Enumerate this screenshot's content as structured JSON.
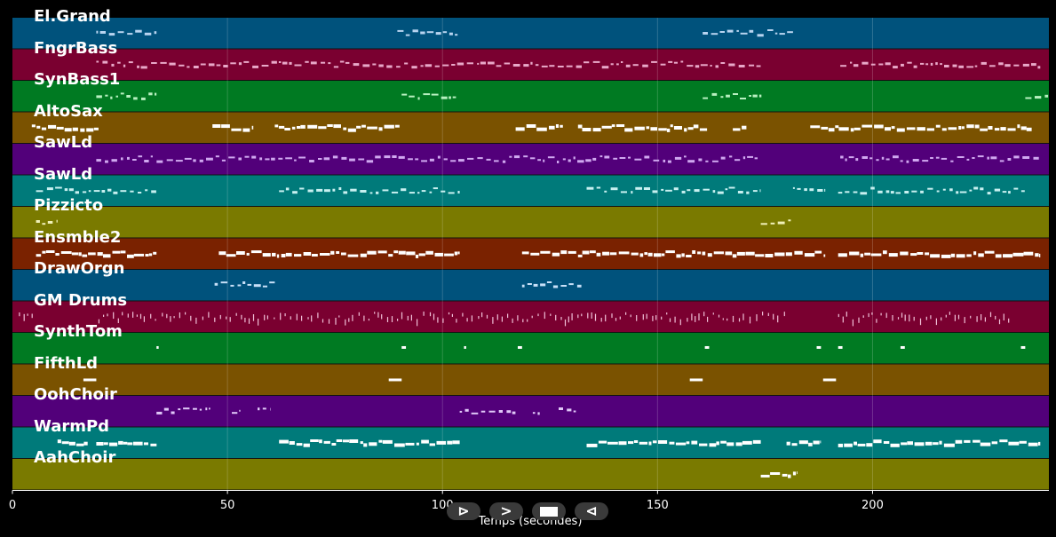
{
  "tracks": [
    {
      "name": "El.Grand",
      "color": "#00527c",
      "note_color": "#b8d4f0"
    },
    {
      "name": "FngrBass",
      "color": "#7a0030",
      "note_color": "#e8a8c8"
    },
    {
      "name": "SynBass1",
      "color": "#007a22",
      "note_color": "#b8f0c0"
    },
    {
      "name": "AltoSax",
      "color": "#7a5200",
      "note_color": "#ffffff"
    },
    {
      "name": "SawLd",
      "color": "#52007a",
      "note_color": "#d0a8f0"
    },
    {
      "name": "SawLd",
      "color": "#007a7a",
      "note_color": "#c8f0f0"
    },
    {
      "name": "Pizzicto",
      "color": "#7a7a00",
      "note_color": "#f0f0b8"
    },
    {
      "name": "Ensmble2",
      "color": "#7a2200",
      "note_color": "#ffffff"
    },
    {
      "name": "DrawOrgn",
      "color": "#00527c",
      "note_color": "#c8e0f8"
    },
    {
      "name": "GM Drums",
      "color": "#7a0030",
      "note_color": "#f0c0d8"
    },
    {
      "name": "SynthTom",
      "color": "#007a22",
      "note_color": "#ffffff"
    },
    {
      "name": "FifthLd",
      "color": "#7a5200",
      "note_color": "#ffffff"
    },
    {
      "name": "OohChoir",
      "color": "#52007a",
      "note_color": "#e0c8f8"
    },
    {
      "name": "WarmPd",
      "color": "#007a7a",
      "note_color": "#ffffff"
    },
    {
      "name": "AahChoir",
      "color": "#7a7a00",
      "note_color": "#ffffff"
    }
  ],
  "axis": {
    "xlabel": "Temps (secondes)",
    "xlim": [
      0,
      241
    ],
    "ticks": [
      {
        "value": 0,
        "label": "0"
      },
      {
        "value": 50,
        "label": "50"
      },
      {
        "value": 100,
        "label": "100"
      },
      {
        "value": 150,
        "label": "150"
      },
      {
        "value": 200,
        "label": "200"
      }
    ],
    "grid": true
  },
  "controls": {
    "play_label": "⊳",
    "forward_label": ">",
    "back_label": "⊲"
  },
  "note_segments": [
    {
      "track": 0,
      "ranges": [
        [
          19.5,
          33.5
        ],
        [
          89.5,
          103.5
        ],
        [
          160.5,
          181.5
        ]
      ],
      "style": "sparse"
    },
    {
      "track": 1,
      "ranges": [
        [
          19.5,
          174
        ],
        [
          192.5,
          239
        ]
      ],
      "style": "sparse"
    },
    {
      "track": 2,
      "ranges": [
        [
          19.5,
          33.5
        ],
        [
          90.5,
          103.5
        ],
        [
          160.5,
          174.5
        ],
        [
          235.5,
          241
        ]
      ],
      "style": "sparse"
    },
    {
      "track": 3,
      "ranges": [
        [
          4.5,
          20
        ],
        [
          46.5,
          56
        ],
        [
          61,
          90
        ],
        [
          117,
          128
        ],
        [
          131.5,
          161.5
        ],
        [
          167.5,
          171
        ],
        [
          185.5,
          237
        ]
      ],
      "style": "dense"
    },
    {
      "track": 4,
      "ranges": [
        [
          19.5,
          174
        ],
        [
          192.5,
          239
        ]
      ],
      "style": "sparse"
    },
    {
      "track": 5,
      "ranges": [
        [
          5.5,
          33.5
        ],
        [
          62,
          104
        ],
        [
          133.5,
          174
        ],
        [
          181.5,
          189
        ],
        [
          192,
          236
        ]
      ],
      "style": "sparse"
    },
    {
      "track": 6,
      "ranges": [
        [
          5.5,
          10.5
        ],
        [
          174,
          181
        ]
      ],
      "style": "sparse"
    },
    {
      "track": 7,
      "ranges": [
        [
          5.5,
          33.5
        ],
        [
          48,
          62
        ],
        [
          62.5,
          104
        ],
        [
          118.5,
          132.5
        ],
        [
          132.5,
          189
        ],
        [
          192,
          239
        ]
      ],
      "style": "dense"
    },
    {
      "track": 8,
      "ranges": [
        [
          47,
          61
        ],
        [
          118.5,
          132.5
        ]
      ],
      "style": "sparse"
    },
    {
      "track": 9,
      "ranges": [
        [
          1.5,
          5
        ],
        [
          20,
          180
        ],
        [
          192,
          232
        ]
      ],
      "style": "drum"
    },
    {
      "track": 10,
      "ranges": [
        [
          33.5,
          34
        ],
        [
          90.5,
          91.5
        ],
        [
          105,
          105.5
        ],
        [
          117.5,
          118.5
        ],
        [
          161,
          162
        ],
        [
          187,
          188
        ],
        [
          192,
          193
        ],
        [
          206.5,
          207.5
        ],
        [
          234.5,
          235.5
        ]
      ],
      "style": "blip"
    },
    {
      "track": 11,
      "ranges": [
        [
          16.5,
          19.5
        ],
        [
          87.5,
          90.5
        ],
        [
          157.5,
          160.5
        ],
        [
          188.5,
          191.5
        ]
      ],
      "style": "solid"
    },
    {
      "track": 12,
      "ranges": [
        [
          33.5,
          46
        ],
        [
          51,
          53
        ],
        [
          57,
          60
        ],
        [
          104,
          117
        ],
        [
          121,
          123
        ],
        [
          127,
          131
        ]
      ],
      "style": "sparse"
    },
    {
      "track": 13,
      "ranges": [
        [
          10.5,
          17.5
        ],
        [
          19.5,
          33.5
        ],
        [
          62,
          104
        ],
        [
          133.5,
          174
        ],
        [
          180,
          188
        ],
        [
          192,
          239
        ]
      ],
      "style": "dense"
    },
    {
      "track": 14,
      "ranges": [
        [
          174,
          181
        ],
        [
          181.5,
          182.5
        ]
      ],
      "style": "dense"
    }
  ]
}
